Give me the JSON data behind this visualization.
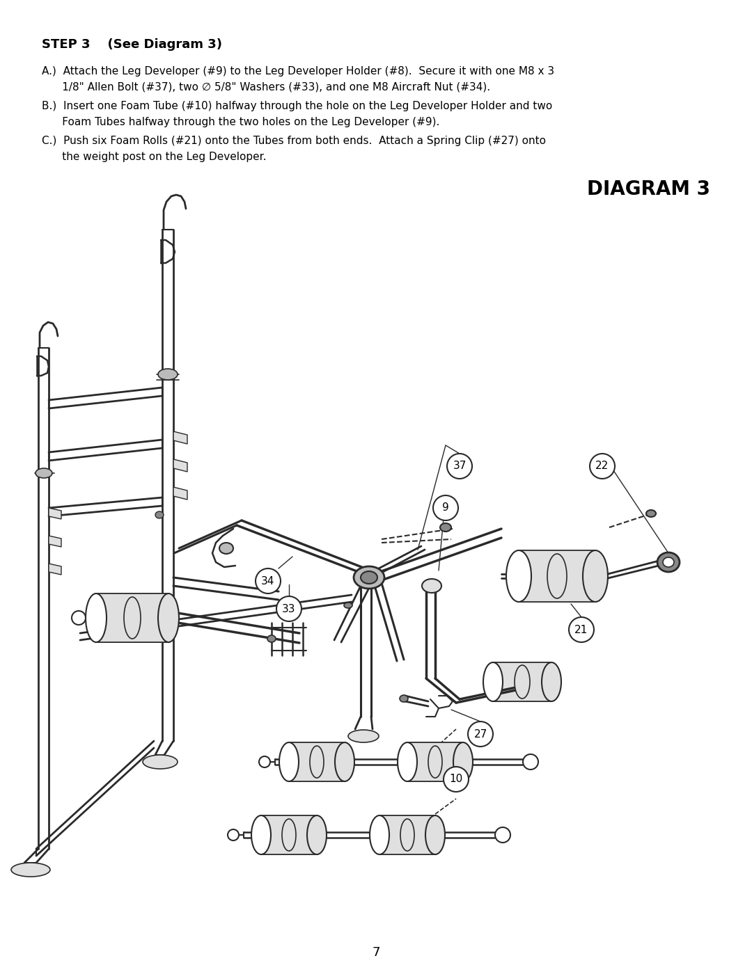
{
  "bg_color": "#ffffff",
  "page_width": 10.8,
  "page_height": 13.97,
  "title": "STEP 3    (See Diagram 3)",
  "diagram_title": "DIAGRAM 3",
  "step_text_A1": "A.)  Attach the Leg Developer (#9) to the Leg Developer Holder (#8).  Secure it with one M8 x 3",
  "step_text_A2": "      1/8\" Allen Bolt (#37), two ∅ 5/8\" Washers (#33), and one M8 Aircraft Nut (#34).",
  "step_text_B1": "B.)  Insert one Foam Tube (#10) halfway through the hole on the Leg Developer Holder and two",
  "step_text_B2": "      Foam Tubes halfway through the two holes on the Leg Developer (#9).",
  "step_text_C1": "C.)  Push six Foam Rolls (#21) onto the Tubes from both ends.  Attach a Spring Clip (#27) onto",
  "step_text_C2": "      the weight post on the Leg Developer.",
  "page_number": "7",
  "text_color": "#000000",
  "line_color": "#2a2a2a",
  "fill_light": "#e0e0e0",
  "fill_dark": "#888888",
  "fill_mid": "#bbbbbb"
}
